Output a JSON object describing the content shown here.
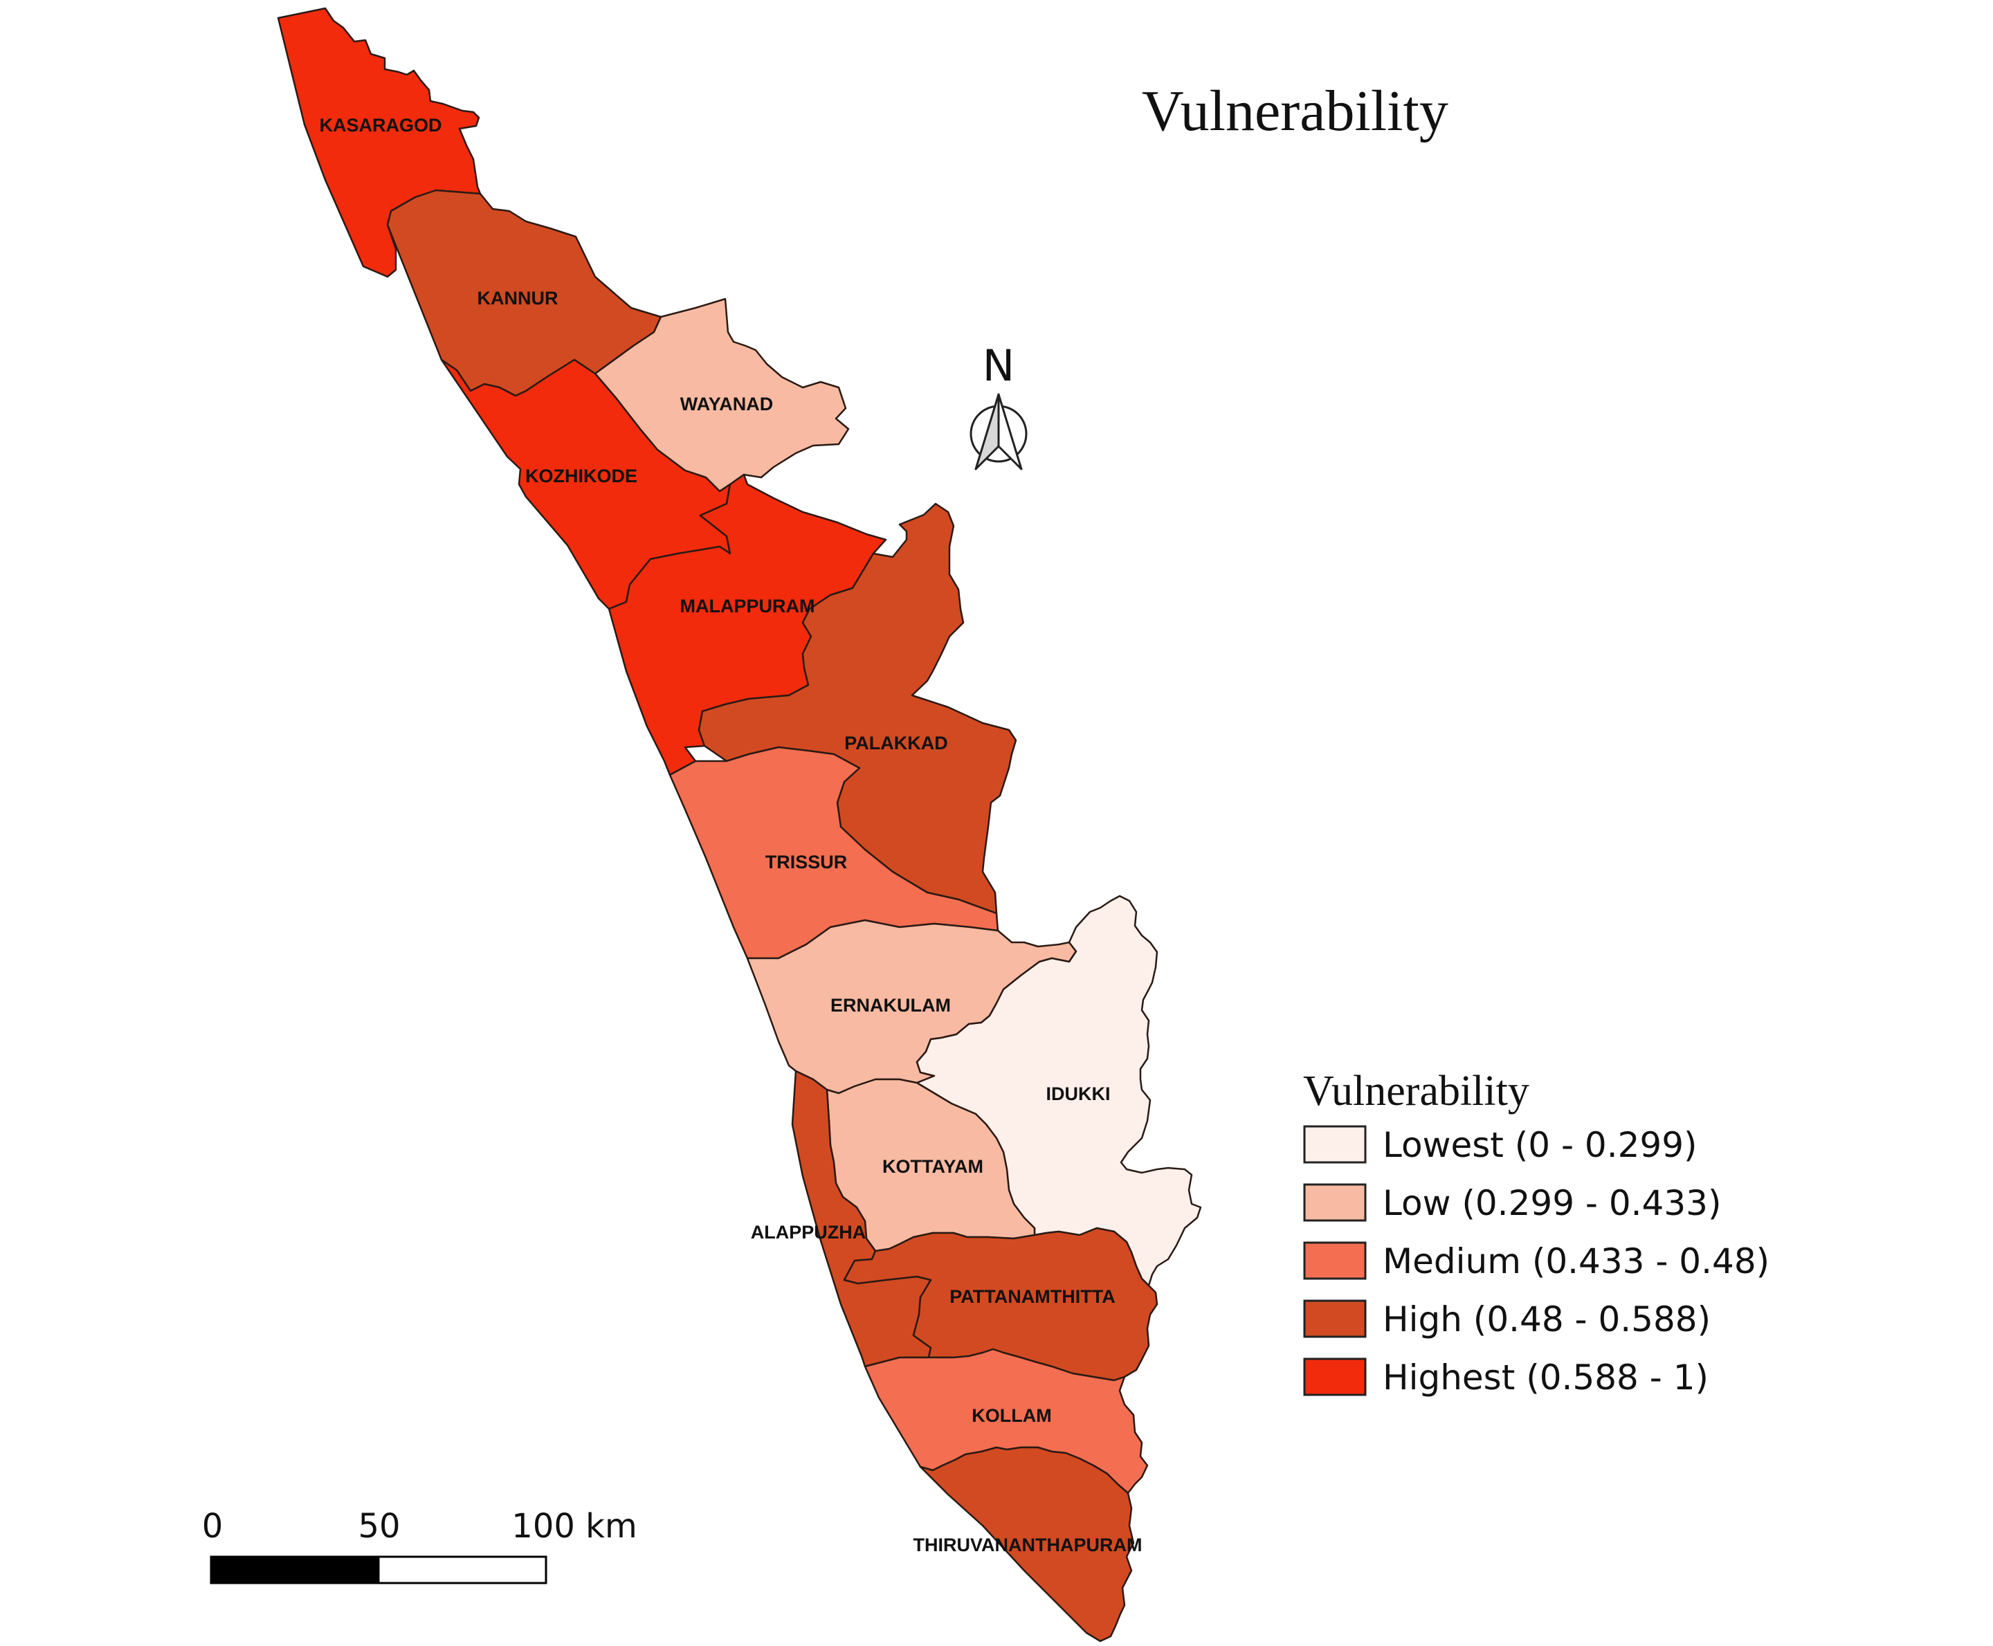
{
  "title": "Vulnerability",
  "colors": {
    "lowest": "#fdf0eb",
    "low": "#f8baa2",
    "medium": "#f46e51",
    "high": "#d24a22",
    "highest": "#f22b0d"
  },
  "legend": {
    "title": "Vulnerability",
    "items": [
      {
        "class": "lowest",
        "label": "Lowest (0 - 0.299)"
      },
      {
        "class": "low",
        "label": "Low (0.299 - 0.433)"
      },
      {
        "class": "medium",
        "label": "Medium (0.433 - 0.48)"
      },
      {
        "class": "high",
        "label": "High (0.48 - 0.588)"
      },
      {
        "class": "highest",
        "label": "Highest (0.588 - 1)"
      }
    ]
  },
  "north_arrow": {
    "label": "N"
  },
  "scale_bar": {
    "ticks": [
      "0",
      "50",
      "100 km"
    ]
  },
  "districts": [
    {
      "name": "KASARAGOD",
      "class": "highest"
    },
    {
      "name": "KANNUR",
      "class": "high"
    },
    {
      "name": "WAYANAD",
      "class": "low"
    },
    {
      "name": "KOZHIKODE",
      "class": "highest"
    },
    {
      "name": "MALAPPURAM",
      "class": "highest"
    },
    {
      "name": "PALAKKAD",
      "class": "high"
    },
    {
      "name": "TRISSUR",
      "class": "medium"
    },
    {
      "name": "ERNAKULAM",
      "class": "low"
    },
    {
      "name": "IDUKKI",
      "class": "lowest"
    },
    {
      "name": "KOTTAYAM",
      "class": "low"
    },
    {
      "name": "ALAPPUZHA",
      "class": "high"
    },
    {
      "name": "PATTANAMTHITTA",
      "class": "high"
    },
    {
      "name": "KOLLAM",
      "class": "medium"
    },
    {
      "name": "THIRUVANANTHAPURAM",
      "class": "high"
    }
  ]
}
